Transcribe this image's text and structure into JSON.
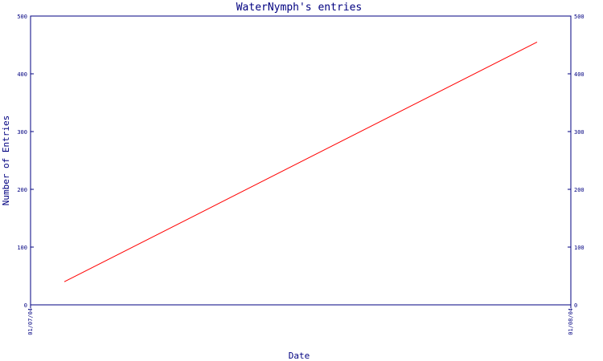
{
  "chart_data": {
    "type": "line",
    "title": "WaterNymph's entries",
    "xlabel": "Date",
    "ylabel": "Number of Entries",
    "x_tick_labels": [
      "01/07/04",
      "01/08/04"
    ],
    "y_ticks": [
      0,
      100,
      200,
      300,
      400,
      500
    ],
    "ylim": [
      0,
      500
    ],
    "xlim": [
      "2004-01-07",
      "2004-01-08"
    ],
    "grid": false,
    "right_axis": true,
    "series": [
      {
        "color": "#ff0000",
        "points": [
          {
            "x": "2004-01-07T01:30",
            "y": 40
          },
          {
            "x": "2004-01-07T22:30",
            "y": 455
          }
        ]
      }
    ]
  }
}
